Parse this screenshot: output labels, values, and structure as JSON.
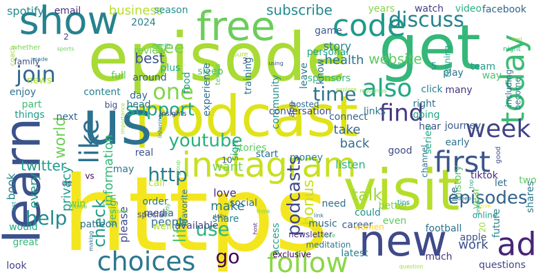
{
  "words": [
    {
      "text": "https",
      "color": "#f4e61e"
    },
    {
      "text": "episode",
      "color": "#a8db34"
    },
    {
      "text": "podcast",
      "color": "#dfe318"
    },
    {
      "text": "us",
      "color": "#2c728e"
    },
    {
      "text": "get",
      "color": "#35b779"
    },
    {
      "text": "learn",
      "color": "#3b528b"
    },
    {
      "text": "visit",
      "color": "#b5de2b"
    },
    {
      "text": "new",
      "color": "#3e4a89"
    },
    {
      "text": "show",
      "color": "#26828e"
    },
    {
      "text": "free",
      "color": "#6ccd5a"
    },
    {
      "text": "instagram",
      "color": "#c8e020"
    },
    {
      "text": "code",
      "color": "#1f9a8a"
    },
    {
      "text": "today",
      "color": "#3dbc74"
    },
    {
      "text": "follow",
      "color": "#8bd646"
    },
    {
      "text": "choices",
      "color": "#2a788e"
    },
    {
      "text": "first",
      "color": "#39558c"
    },
    {
      "text": "ad",
      "color": "#482576"
    },
    {
      "text": "also",
      "color": "#22a884"
    },
    {
      "text": "week",
      "color": "#414487"
    },
    {
      "text": "like",
      "color": "#2d708e"
    },
    {
      "text": "discuss",
      "color": "#25848e"
    },
    {
      "text": "join",
      "color": "#31688e"
    },
    {
      "text": "one",
      "color": "#84d44b"
    },
    {
      "text": "support",
      "color": "#20a486"
    },
    {
      "text": "youtube",
      "color": "#29af7f"
    },
    {
      "text": "time",
      "color": "#2b748e"
    },
    {
      "text": "find",
      "color": "#453781"
    },
    {
      "text": "see",
      "color": "#7ad151"
    },
    {
      "text": "talk",
      "color": "#9fda3a"
    },
    {
      "text": "check",
      "color": "#1e9c89"
    },
    {
      "text": "help",
      "color": "#238a8d"
    },
    {
      "text": "http",
      "color": "#297b8e"
    },
    {
      "text": "go",
      "color": "#440154"
    },
    {
      "text": "life",
      "color": "#52c569"
    },
    {
      "text": "use",
      "color": "#2fb47c"
    },
    {
      "text": "episodes",
      "color": "#33638d"
    },
    {
      "text": "subscribe",
      "color": "#23888e"
    },
    {
      "text": "world",
      "color": "#6ece58"
    },
    {
      "text": "twitter",
      "color": "#1f988b"
    },
    {
      "text": "back",
      "color": "#2e6e8e"
    },
    {
      "text": "take",
      "color": "#31668e"
    },
    {
      "text": "listen",
      "color": "#29af7f"
    },
    {
      "text": "podcasts",
      "color": "#3f4889"
    },
    {
      "text": "bonus",
      "color": "#c8e020"
    },
    {
      "text": "work",
      "color": "#3b528b"
    },
    {
      "text": "website",
      "color": "#5ec962"
    },
    {
      "text": "health",
      "color": "#2c728e"
    },
    {
      "text": "story",
      "color": "#26828e"
    },
    {
      "text": "privacy",
      "color": "#1f9e89"
    },
    {
      "text": "information",
      "color": "#35b779"
    },
    {
      "text": "please",
      "color": "#3e4a89"
    },
    {
      "text": "make",
      "color": "#2a788e"
    },
    {
      "text": "love",
      "color": "#482878"
    },
    {
      "text": "want",
      "color": "#7ad151"
    },
    {
      "text": "every",
      "color": "#1e9b8a"
    },
    {
      "text": "book",
      "color": "#25838e"
    },
    {
      "text": "people",
      "color": "#2d708e"
    },
    {
      "text": "business",
      "color": "#b5de2b"
    },
    {
      "text": "spotify",
      "color": "#238a8d"
    },
    {
      "text": "email",
      "color": "#46327e"
    },
    {
      "text": "season",
      "color": "#21918c"
    },
    {
      "text": "game",
      "color": "#38588c"
    },
    {
      "text": "years",
      "color": "#84d44b"
    },
    {
      "text": "watch",
      "color": "#433e85"
    },
    {
      "text": "video",
      "color": "#2ab07f"
    },
    {
      "text": "facebook",
      "color": "#33638d"
    },
    {
      "text": "2024",
      "color": "#277f8e"
    },
    {
      "text": "best",
      "color": "#3a548c"
    },
    {
      "text": "review",
      "color": "#6ece58"
    },
    {
      "text": "plus",
      "color": "#22a884"
    },
    {
      "text": "sleep",
      "color": "#4ac16d"
    },
    {
      "text": "full",
      "color": "#5ec962"
    },
    {
      "text": "news",
      "color": "#a8db34"
    },
    {
      "text": "content",
      "color": "#26828e"
    },
    {
      "text": "day",
      "color": "#31688e"
    },
    {
      "text": "head",
      "color": "#2d708e"
    },
    {
      "text": "big",
      "color": "#414487"
    },
    {
      "text": "part",
      "color": "#3dbc74"
    },
    {
      "text": "enjoy",
      "color": "#2c728e"
    },
    {
      "text": "things",
      "color": "#1f9a8a"
    },
    {
      "text": "next",
      "color": "#31668e"
    },
    {
      "text": "real",
      "color": "#3b528b"
    },
    {
      "text": "may",
      "color": "#2a788e"
    },
    {
      "text": "call",
      "color": "#b5de2b"
    },
    {
      "text": "order",
      "color": "#2a788e"
    },
    {
      "text": "media",
      "color": "#3f4889"
    },
    {
      "text": "well",
      "color": "#b5de2b"
    },
    {
      "text": "share",
      "color": "#26828e"
    },
    {
      "text": "social",
      "color": "#2b748e"
    },
    {
      "text": "need",
      "color": "#2d708e"
    },
    {
      "text": "music",
      "color": "#31688e"
    },
    {
      "text": "access",
      "color": "#1fa088"
    },
    {
      "text": "career",
      "color": "#38588c"
    },
    {
      "text": "great",
      "color": "#35b779"
    },
    {
      "text": "would",
      "color": "#22a884"
    },
    {
      "text": "look",
      "color": "#414487"
    },
    {
      "text": "win",
      "color": "#5ec962"
    },
    {
      "text": "latest",
      "color": "#277f8e"
    },
    {
      "text": "much",
      "color": "#453781"
    },
    {
      "text": "questions",
      "color": "#404688"
    },
    {
      "text": "apple",
      "color": "#3b528b"
    },
    {
      "text": "football",
      "color": "#2c728e"
    },
    {
      "text": "future",
      "color": "#26828e"
    },
    {
      "text": "two",
      "color": "#5ec962"
    },
    {
      "text": "let",
      "color": "#31688e"
    },
    {
      "text": "shares",
      "color": "#2a788e"
    },
    {
      "text": "could",
      "color": "#21918c"
    },
    {
      "text": "better",
      "color": "#84d44b"
    },
    {
      "text": "connect",
      "color": "#33638d"
    },
    {
      "text": "going",
      "color": "#20a486"
    },
    {
      "text": "good",
      "color": "#3e4a89"
    },
    {
      "text": "channel",
      "color": "#2a788e"
    },
    {
      "text": "tiktok",
      "color": "#472d7b"
    },
    {
      "text": "journey",
      "color": "#38588c"
    },
    {
      "text": "right",
      "color": "#2c728e"
    },
    {
      "text": "click",
      "color": "#26828e"
    },
    {
      "text": "play",
      "color": "#2d708e"
    },
    {
      "text": "team",
      "color": "#1f9a8a"
    },
    {
      "text": "way",
      "color": "#4ac16d"
    },
    {
      "text": "many",
      "color": "#46327e"
    },
    {
      "text": "including",
      "color": "#2d708e"
    },
    {
      "text": "become",
      "color": "#277f8e"
    },
    {
      "text": "training",
      "color": "#2b748e"
    },
    {
      "text": "sponsors",
      "color": "#35b779"
    },
    {
      "text": "leave",
      "color": "#2a788e"
    },
    {
      "text": "know",
      "color": "#2d708e"
    },
    {
      "text": "hosted",
      "color": "#31688e"
    },
    {
      "text": "app",
      "color": "#39558c"
    },
    {
      "text": "conversation",
      "color": "#3e4a89"
    },
    {
      "text": "links",
      "color": "#2a788e"
    },
    {
      "text": "hear",
      "color": "#3b528b"
    },
    {
      "text": "series",
      "color": "#22a884"
    },
    {
      "text": "start",
      "color": "#2c728e"
    },
    {
      "text": "money",
      "color": "#26828e"
    },
    {
      "text": "stories",
      "color": "#5ec962"
    },
    {
      "text": "sign",
      "color": "#1fa088"
    },
    {
      "text": "personal",
      "color": "#20a486"
    },
    {
      "text": "community",
      "color": "#21918c"
    },
    {
      "text": "food",
      "color": "#1f9a8a"
    },
    {
      "text": "experience",
      "color": "#2c728e"
    },
    {
      "text": "around",
      "color": "#38588c"
    },
    {
      "text": "design",
      "color": "#3dbc74"
    },
    {
      "text": "favorite",
      "color": "#2c728e"
    },
    {
      "text": "history",
      "color": "#52c569"
    },
    {
      "text": "live",
      "color": "#31688e"
    },
    {
      "text": "early",
      "color": "#2c728e"
    },
    {
      "text": "even",
      "color": "#5ec962"
    },
    {
      "text": "special",
      "color": "#3a548c"
    },
    {
      "text": "available",
      "color": "#404688"
    },
    {
      "text": "exclusive",
      "color": "#440154"
    },
    {
      "text": "meditation",
      "color": "#2a788e"
    },
    {
      "text": "newsletter",
      "color": "#472d7b"
    },
    {
      "text": "online",
      "color": "#1f9e89"
    },
    {
      "text": "women",
      "color": "#ffcf20"
    },
    {
      "text": "patreon",
      "color": "#2d708e"
    },
    {
      "text": "de",
      "color": "#38588c"
    },
    {
      "text": "vs",
      "color": "#440154"
    },
    {
      "text": "10",
      "color": "#39568c"
    },
    {
      "text": "20",
      "color": "#9fda3a"
    },
    {
      "text": "2",
      "color": "#433e85"
    },
    {
      "text": "3",
      "color": "#453781"
    },
    {
      "text": "5",
      "color": "#21918c"
    },
    {
      "text": "running",
      "color": "#22a884"
    },
    {
      "text": "year",
      "color": "#6ece58"
    },
    {
      "text": "family",
      "color": "#3b528b"
    },
    {
      "text": "coach",
      "color": "#9fda3a"
    },
    {
      "text": "whether",
      "color": "#7ad151"
    },
    {
      "text": "sports",
      "color": "#6ccd5a"
    },
    {
      "text": "tennis",
      "color": "#5ec962"
    },
    {
      "text": "using",
      "color": "#3b528b"
    },
    {
      "text": "feel",
      "color": "#8bd646"
    },
    {
      "text": "night",
      "color": "#35b779"
    },
    {
      "text": "sure",
      "color": "#a8db34"
    },
    {
      "text": "made",
      "color": "#2d708e"
    },
    {
      "text": "explore",
      "color": "#9fda3a"
    },
    {
      "text": "resources",
      "color": "#6ece58"
    },
    {
      "text": "month",
      "color": "#3dbc74"
    },
    {
      "text": "insights",
      "color": "#414487"
    },
    {
      "text": "importance",
      "color": "#9fda3a"
    },
    {
      "text": "listening",
      "color": "#2a788e"
    },
    {
      "text": "group",
      "color": "#6ece58"
    },
    {
      "text": "body",
      "color": "#52c569"
    },
    {
      "text": "tips",
      "color": "#1e9b8a"
    },
    {
      "text": "top",
      "color": "#22a884"
    },
    {
      "text": "break",
      "color": "#1fa088"
    },
    {
      "text": "deep",
      "color": "#2a788e"
    },
    {
      "text": "give",
      "color": "#fde725"
    },
    {
      "text": "good",
      "color": "#3e4a89"
    },
    {
      "text": "power",
      "color": "#84d44b"
    },
    {
      "text": "home",
      "color": "#5ec962"
    },
    {
      "text": "daily",
      "color": "#3e4a89"
    },
    {
      "text": "link",
      "color": "#2d708e"
    },
    {
      "text": "think",
      "color": "#7ad151"
    },
    {
      "text": "advice",
      "color": "#4ac16d"
    },
    {
      "text": "last",
      "color": "#21918c"
    },
    {
      "text": "making",
      "color": "#2c728e"
    },
    {
      "text": "question",
      "color": "#9fda3a"
    },
    {
      "text": "host",
      "color": "#482576"
    }
  ]
}
